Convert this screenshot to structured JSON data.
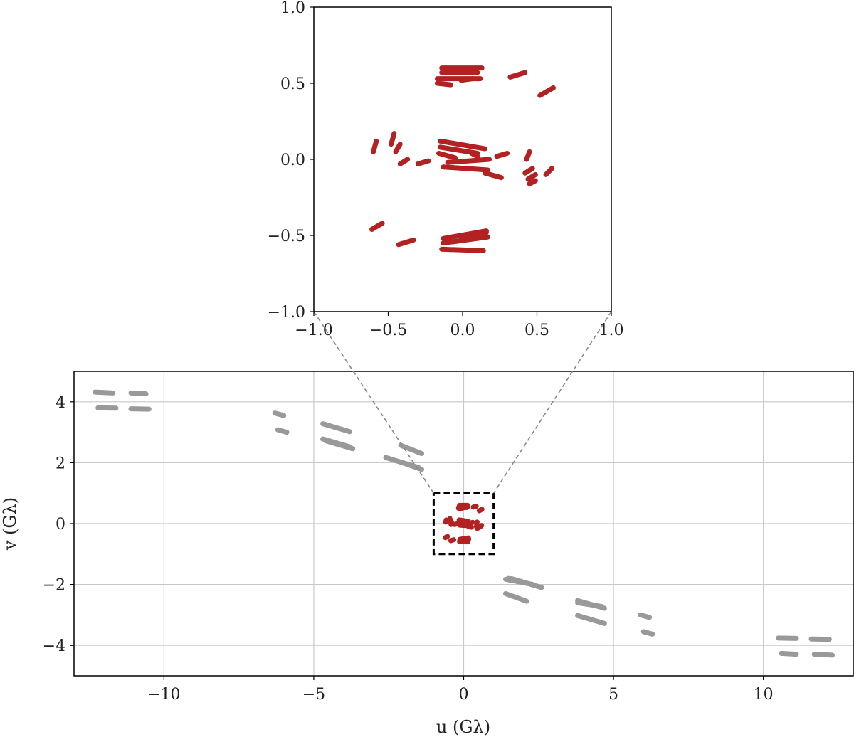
{
  "chart_data": [
    {
      "type": "scatter",
      "panel": "zoom-inset",
      "xlim": [
        -1.0,
        1.0
      ],
      "ylim": [
        -1.0,
        1.0
      ],
      "xticks": [
        "−1.0",
        "−0.5",
        "0.0",
        "0.5",
        "1.0"
      ],
      "yticks": [
        "1.0",
        "0.5",
        "0.0",
        "−0.5",
        "−1.0"
      ],
      "grid": false,
      "point_color": "#b22222",
      "segments": [
        {
          "x1": -0.14,
          "y1": 0.6,
          "x2": 0.13,
          "y2": 0.6
        },
        {
          "x1": -0.14,
          "y1": 0.57,
          "x2": 0.1,
          "y2": 0.57
        },
        {
          "x1": -0.17,
          "y1": 0.53,
          "x2": 0.12,
          "y2": 0.53
        },
        {
          "x1": -0.17,
          "y1": 0.5,
          "x2": -0.08,
          "y2": 0.49
        },
        {
          "x1": -0.01,
          "y1": 0.52,
          "x2": 0.07,
          "y2": 0.53
        },
        {
          "x1": 0.32,
          "y1": 0.54,
          "x2": 0.42,
          "y2": 0.57
        },
        {
          "x1": 0.52,
          "y1": 0.42,
          "x2": 0.61,
          "y2": 0.47
        },
        {
          "x1": -0.6,
          "y1": 0.05,
          "x2": -0.58,
          "y2": 0.12
        },
        {
          "x1": -0.48,
          "y1": 0.1,
          "x2": -0.46,
          "y2": 0.17
        },
        {
          "x1": -0.45,
          "y1": 0.05,
          "x2": -0.42,
          "y2": 0.1
        },
        {
          "x1": -0.42,
          "y1": -0.03,
          "x2": -0.37,
          "y2": 0.0
        },
        {
          "x1": -0.3,
          "y1": -0.03,
          "x2": -0.23,
          "y2": -0.01
        },
        {
          "x1": -0.15,
          "y1": 0.12,
          "x2": 0.15,
          "y2": 0.07
        },
        {
          "x1": -0.15,
          "y1": 0.08,
          "x2": 0.1,
          "y2": 0.04
        },
        {
          "x1": -0.16,
          "y1": 0.04,
          "x2": -0.05,
          "y2": 0.01
        },
        {
          "x1": -0.13,
          "y1": -0.05,
          "x2": 0.17,
          "y2": -0.07
        },
        {
          "x1": -0.1,
          "y1": -0.02,
          "x2": 0.18,
          "y2": 0.0
        },
        {
          "x1": 0.06,
          "y1": 0.04,
          "x2": 0.1,
          "y2": 0.02
        },
        {
          "x1": 0.15,
          "y1": -0.09,
          "x2": 0.26,
          "y2": -0.12
        },
        {
          "x1": 0.23,
          "y1": 0.02,
          "x2": 0.3,
          "y2": 0.04
        },
        {
          "x1": 0.43,
          "y1": 0.0,
          "x2": 0.45,
          "y2": 0.05
        },
        {
          "x1": 0.42,
          "y1": -0.09,
          "x2": 0.47,
          "y2": -0.06
        },
        {
          "x1": 0.44,
          "y1": -0.13,
          "x2": 0.49,
          "y2": -0.1
        },
        {
          "x1": 0.45,
          "y1": -0.16,
          "x2": 0.49,
          "y2": -0.14
        },
        {
          "x1": 0.56,
          "y1": -0.1,
          "x2": 0.6,
          "y2": -0.06
        },
        {
          "x1": -0.61,
          "y1": -0.46,
          "x2": -0.54,
          "y2": -0.42
        },
        {
          "x1": -0.43,
          "y1": -0.56,
          "x2": -0.33,
          "y2": -0.53
        },
        {
          "x1": -0.13,
          "y1": -0.52,
          "x2": 0.16,
          "y2": -0.47
        },
        {
          "x1": -0.13,
          "y1": -0.55,
          "x2": 0.17,
          "y2": -0.51
        },
        {
          "x1": -0.14,
          "y1": -0.59,
          "x2": 0.14,
          "y2": -0.6
        },
        {
          "x1": 0.02,
          "y1": -0.52,
          "x2": 0.16,
          "y2": -0.48
        }
      ]
    },
    {
      "type": "scatter",
      "panel": "main",
      "xlabel": "u (Gλ)",
      "ylabel": "v (Gλ)",
      "xlim": [
        -13,
        13
      ],
      "ylim": [
        -5,
        5
      ],
      "xticks": [
        -10,
        -5,
        0,
        5,
        10
      ],
      "yticks": [
        4,
        2,
        0,
        -2,
        -4
      ],
      "xtick_labels": [
        "−10",
        "−5",
        "0",
        "5",
        "10"
      ],
      "ytick_labels": [
        "4",
        "2",
        "0",
        "−2",
        "−4"
      ],
      "grid": true,
      "point_color": "#999999",
      "zoom_box": {
        "x": [
          -1,
          1
        ],
        "y": [
          -1,
          1
        ]
      },
      "segments": [
        {
          "x1": -12.3,
          "y1": 4.32,
          "x2": -11.7,
          "y2": 4.29
        },
        {
          "x1": -11.1,
          "y1": 4.29,
          "x2": -10.6,
          "y2": 4.26
        },
        {
          "x1": -12.2,
          "y1": 3.8,
          "x2": -11.6,
          "y2": 3.79
        },
        {
          "x1": -11.1,
          "y1": 3.77,
          "x2": -10.5,
          "y2": 3.76
        },
        {
          "x1": -6.3,
          "y1": 3.63,
          "x2": -6.0,
          "y2": 3.55
        },
        {
          "x1": -6.2,
          "y1": 3.08,
          "x2": -5.9,
          "y2": 3.0
        },
        {
          "x1": -4.7,
          "y1": 3.28,
          "x2": -3.8,
          "y2": 3.02
        },
        {
          "x1": -4.7,
          "y1": 2.78,
          "x2": -3.8,
          "y2": 2.52
        },
        {
          "x1": -4.6,
          "y1": 2.72,
          "x2": -3.7,
          "y2": 2.46
        },
        {
          "x1": -2.1,
          "y1": 2.57,
          "x2": -1.4,
          "y2": 2.3
        },
        {
          "x1": -2.6,
          "y1": 2.17,
          "x2": -1.5,
          "y2": 1.84
        },
        {
          "x1": -2.1,
          "y1": 2.02,
          "x2": -1.4,
          "y2": 1.78
        },
        {
          "x1": 1.5,
          "y1": -1.78,
          "x2": 2.6,
          "y2": -2.1
        },
        {
          "x1": 1.4,
          "y1": -1.83,
          "x2": 2.3,
          "y2": -2.0
        },
        {
          "x1": 1.4,
          "y1": -2.3,
          "x2": 2.1,
          "y2": -2.55
        },
        {
          "x1": 3.8,
          "y1": -2.53,
          "x2": 4.7,
          "y2": -2.78
        },
        {
          "x1": 3.8,
          "y1": -2.6,
          "x2": 4.6,
          "y2": -2.72
        },
        {
          "x1": 3.8,
          "y1": -3.02,
          "x2": 4.7,
          "y2": -3.28
        },
        {
          "x1": 5.9,
          "y1": -3.0,
          "x2": 6.2,
          "y2": -3.08
        },
        {
          "x1": 6.0,
          "y1": -3.55,
          "x2": 6.3,
          "y2": -3.63
        },
        {
          "x1": 10.5,
          "y1": -3.76,
          "x2": 11.1,
          "y2": -3.77
        },
        {
          "x1": 11.6,
          "y1": -3.79,
          "x2": 12.2,
          "y2": -3.8
        },
        {
          "x1": 10.6,
          "y1": -4.26,
          "x2": 11.1,
          "y2": -4.29
        },
        {
          "x1": 11.7,
          "y1": -4.29,
          "x2": 12.3,
          "y2": -4.32
        }
      ]
    }
  ]
}
